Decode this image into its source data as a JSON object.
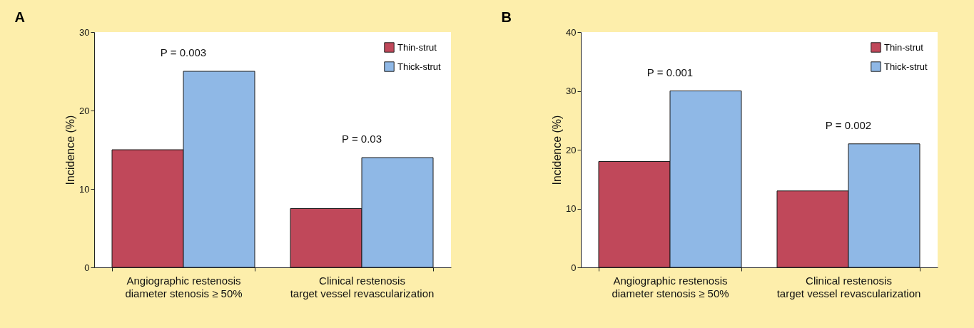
{
  "chart_data": [
    {
      "type": "bar",
      "title": "A",
      "ylabel": "Incidence (%)",
      "categories": [
        "Angiographic restenosis\ndiameter stenosis ≥ 50%",
        "Clinical restenosis\ntarget vessel revascularization"
      ],
      "series": [
        {
          "name": "Thin-strut",
          "color": "#c0485a",
          "values": [
            15,
            7.5
          ]
        },
        {
          "name": "Thick-strut",
          "color": "#8fb8e6",
          "values": [
            25,
            14
          ]
        }
      ],
      "ylim": [
        0,
        30
      ],
      "yticks": [
        0,
        10,
        20,
        30
      ],
      "grid": false,
      "legend": "top right",
      "annotations": [
        "P = 0.003",
        "P = 0.03"
      ]
    },
    {
      "type": "bar",
      "title": "B",
      "ylabel": "Incidence (%)",
      "categories": [
        "Angiographic restenosis\ndiameter stenosis ≥ 50%",
        "Clinical restenosis\ntarget vessel revascularization"
      ],
      "series": [
        {
          "name": "Thin-strut",
          "color": "#c0485a",
          "values": [
            18,
            13
          ]
        },
        {
          "name": "Thick-strut",
          "color": "#8fb8e6",
          "values": [
            30,
            21
          ]
        }
      ],
      "ylim": [
        0,
        40
      ],
      "yticks": [
        0,
        10,
        20,
        30,
        40
      ],
      "grid": false,
      "legend": "top right",
      "annotations": [
        "P = 0.001",
        "P = 0.002"
      ]
    }
  ]
}
